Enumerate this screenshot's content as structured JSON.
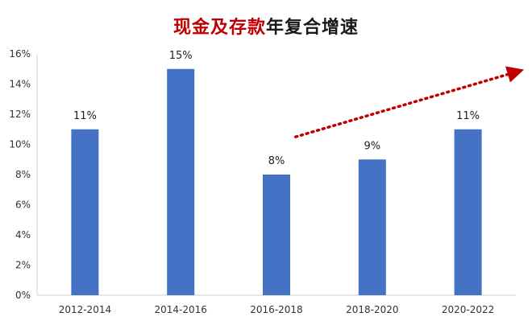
{
  "chart_data": {
    "type": "bar",
    "title_highlight": "现金及存款",
    "title_rest": "年复合增速",
    "categories": [
      "2012-2014",
      "2014-2016",
      "2016-2018",
      "2018-2020",
      "2020-2022"
    ],
    "values": [
      11,
      15,
      8,
      9,
      11
    ],
    "value_labels": [
      "11%",
      "15%",
      "8%",
      "9%",
      "11%"
    ],
    "ylim": [
      0,
      16
    ],
    "yticks": [
      0,
      2,
      4,
      6,
      8,
      10,
      12,
      14,
      16
    ],
    "ytick_labels": [
      "0%",
      "2%",
      "4%",
      "6%",
      "8%",
      "10%",
      "12%",
      "14%",
      "16%"
    ],
    "grid": false,
    "bar_color": "#4472c4",
    "annotation": {
      "type": "trend-arrow",
      "style": "dotted",
      "color": "#c00000",
      "from": [
        2.2,
        10.5
      ],
      "to": [
        4.5,
        14.8
      ]
    }
  }
}
